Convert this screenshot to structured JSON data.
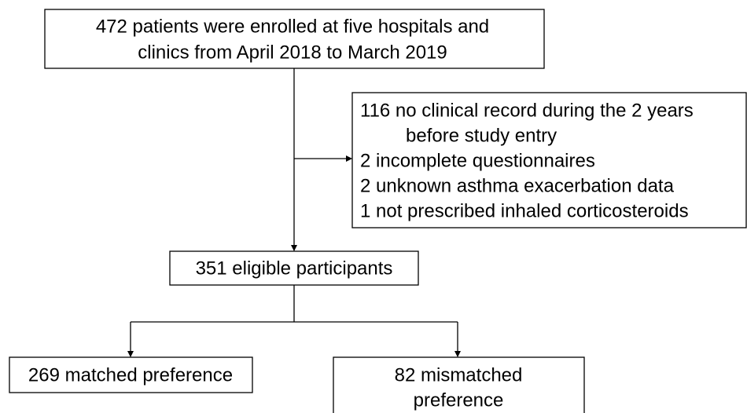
{
  "nodes": [
    {
      "lines": [
        "472 patients were enrolled at five hospitals and",
        "clinics from April 2018 to March 2019"
      ]
    },
    {
      "lines": [
        "351 eligible participants"
      ]
    },
    {
      "lines": [
        "269 matched preference"
      ]
    },
    {
      "lines": [
        "82 mismatched",
        "preference"
      ]
    }
  ],
  "exclusions": {
    "items": [
      {
        "lines": [
          "116 no clinical record during the 2 years",
          "before study entry"
        ]
      },
      {
        "lines": [
          "2 incomplete questionnaires"
        ]
      },
      {
        "lines": [
          "2 unknown asthma exacerbation data"
        ]
      },
      {
        "lines": [
          "1 not prescribed inhaled corticosteroids"
        ]
      }
    ]
  }
}
